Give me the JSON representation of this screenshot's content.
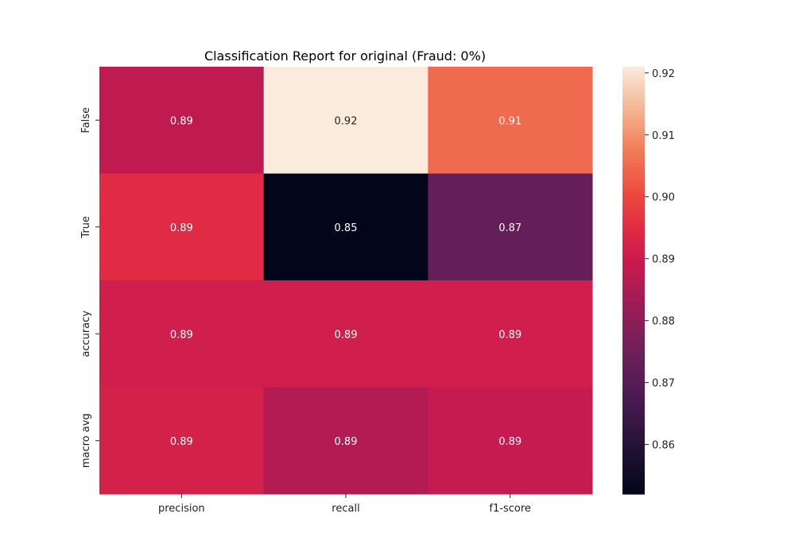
{
  "chart_data": {
    "type": "heatmap",
    "title": "Classification Report for original (Fraud: 0%)",
    "columns": [
      "precision",
      "recall",
      "f1-score"
    ],
    "rows": [
      "False",
      "True",
      "accuracy",
      "macro avg"
    ],
    "values": [
      [
        0.888,
        0.921,
        0.905
      ],
      [
        0.895,
        0.852,
        0.873
      ],
      [
        0.891,
        0.891,
        0.891
      ],
      [
        0.892,
        0.886,
        0.889
      ]
    ],
    "cell_labels": [
      [
        "0.89",
        "0.92",
        "0.91"
      ],
      [
        "0.89",
        "0.85",
        "0.87"
      ],
      [
        "0.89",
        "0.89",
        "0.89"
      ],
      [
        "0.89",
        "0.89",
        "0.89"
      ]
    ],
    "colormap": "rocket",
    "colorbar": {
      "range": [
        0.852,
        0.921
      ],
      "ticks": [
        0.86,
        0.87,
        0.88,
        0.89,
        0.9,
        0.91,
        0.92
      ],
      "tick_labels": [
        "0.86",
        "0.87",
        "0.88",
        "0.89",
        "0.90",
        "0.91",
        "0.92"
      ]
    },
    "grid": false
  }
}
